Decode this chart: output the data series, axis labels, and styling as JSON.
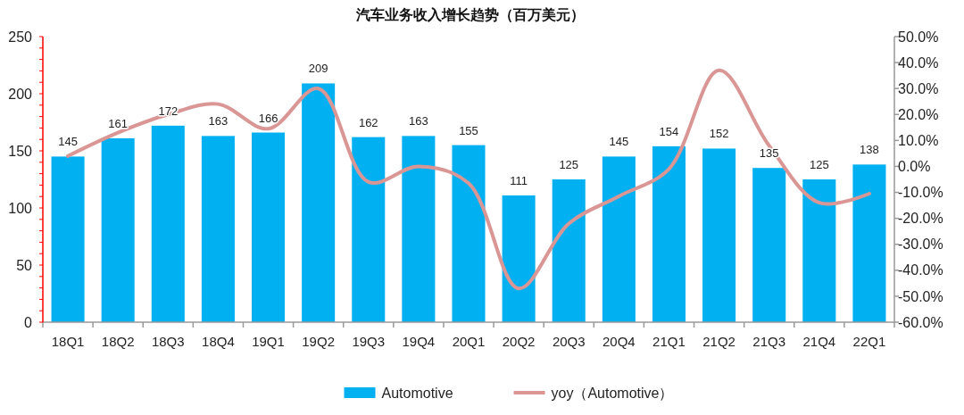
{
  "chart_data": {
    "type": "bar",
    "title": "汽车业务收入增长趋势（百万美元）",
    "categories": [
      "18Q1",
      "18Q2",
      "18Q3",
      "18Q4",
      "19Q1",
      "19Q2",
      "19Q3",
      "19Q4",
      "20Q1",
      "20Q2",
      "20Q3",
      "20Q4",
      "21Q1",
      "21Q2",
      "21Q3",
      "21Q4",
      "22Q1"
    ],
    "series": [
      {
        "name": "Automotive",
        "color": "#00b0f0",
        "values": [
          145,
          161,
          172,
          163,
          166,
          209,
          162,
          163,
          155,
          111,
          125,
          145,
          154,
          152,
          135,
          125,
          138
        ],
        "value_labels": [
          "145",
          "161",
          "172",
          "163",
          "166",
          "209",
          "162",
          "163",
          "155",
          "111",
          "125",
          "145",
          "154",
          "152",
          "135",
          "125",
          "138"
        ]
      },
      {
        "name": "yoy（Automotive）",
        "type": "line",
        "axis": "y2",
        "color": "#d99694",
        "values": [
          4,
          13,
          20,
          24,
          14.5,
          30,
          -6,
          0,
          -6.5,
          -47,
          -22,
          -11.5,
          -1,
          37,
          8,
          -14,
          -10.5
        ]
      }
    ],
    "ylim": [
      0,
      250
    ],
    "yticks": [
      0,
      {
        "value": 10,
        "label": null
      },
      {
        "value": 20,
        "label": null
      },
      {
        "value": 30,
        "label": null
      },
      {
        "value": 40,
        "label": null
      },
      50,
      {
        "value": 60,
        "label": null
      },
      {
        "value": 70,
        "label": null
      },
      {
        "value": 80,
        "label": null
      },
      {
        "value": 90,
        "label": null
      },
      100,
      {
        "value": 110,
        "label": null
      },
      {
        "value": 120,
        "label": null
      },
      {
        "value": 130,
        "label": null
      },
      {
        "value": 140,
        "label": null
      },
      150,
      {
        "value": 160,
        "label": null
      },
      {
        "value": 170,
        "label": null
      },
      {
        "value": 180,
        "label": null
      },
      {
        "value": 190,
        "label": null
      },
      200,
      {
        "value": 210,
        "label": null
      },
      {
        "value": 220,
        "label": null
      },
      {
        "value": 230,
        "label": null
      },
      {
        "value": 240,
        "label": null
      },
      250
    ],
    "y2lim": [
      -60,
      50
    ],
    "y2ticks": [
      {
        "value": -60,
        "label": "-60.0%"
      },
      {
        "value": -50,
        "label": "-50.0%"
      },
      {
        "value": -40,
        "label": "-40.0%"
      },
      {
        "value": -30,
        "label": "-30.0%"
      },
      {
        "value": -20,
        "label": "-20.0%"
      },
      {
        "value": -10,
        "label": "-10.0%"
      },
      {
        "value": 0,
        "label": "0.0%"
      },
      {
        "value": 10,
        "label": "10.0%"
      },
      {
        "value": 20,
        "label": "20.0%"
      },
      {
        "value": 30,
        "label": "30.0%"
      },
      {
        "value": 40,
        "label": "40.0%"
      },
      {
        "value": 50,
        "label": "50.0%"
      }
    ],
    "legend": "bottom"
  }
}
